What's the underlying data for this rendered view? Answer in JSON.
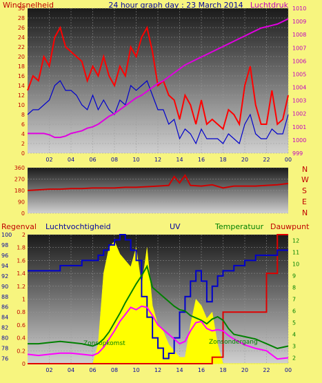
{
  "colors": {
    "page_bg": "#f7f57f",
    "wind": "#e00000",
    "gust": "#ff0000",
    "avg_wind": "#0000cc",
    "pressure": "#e000e0",
    "direction": "#d00000",
    "rain": "#e00000",
    "humidity": "#0000cc",
    "uv": "#ffff00",
    "uv_dark": "#111111",
    "temperature": "#008000",
    "dewpoint": "#ff00ff",
    "text_blue": "#0000a0",
    "text_red": "#c00000",
    "text_green": "#008000",
    "text_magenta": "#c000c0"
  },
  "header": {
    "windsnelheid_label": "Windsnelheid",
    "title": "24 hour graph day : 23 March 2014",
    "luchtdruk_label": "Luchtdruk"
  },
  "compass": {
    "n": "N",
    "w": "W",
    "s1": "S",
    "e": "E",
    "n2": "N"
  },
  "lower_labels": {
    "regenval": "Regenval",
    "luchtvochtigheid": "Luchtvochtigheid",
    "uv": "UV",
    "temperatuur": "Temperatuur",
    "dauwpunt": "Dauwpunt",
    "zonsopkomst": "Zonsopkomst",
    "zonsondergang": "Zonsondergang"
  },
  "chart_data": [
    {
      "type": "line",
      "title": "24 hour graph day : 23 March 2014",
      "x_ticks": [
        "02",
        "04",
        "06",
        "08",
        "10",
        "12",
        "14",
        "16",
        "18",
        "20",
        "22",
        "00"
      ],
      "ylabel_left": "Windsnelheid",
      "ylim_left": [
        0,
        30
      ],
      "y_ticks_left": [
        "0",
        "2",
        "4",
        "6",
        "8",
        "10",
        "12",
        "14",
        "16",
        "18",
        "20",
        "22",
        "24",
        "26",
        "28",
        "30"
      ],
      "ylabel_right": "Luchtdruk",
      "ylim_right": [
        999,
        1010
      ],
      "y_ticks_right": [
        "999",
        "1000",
        "1001",
        "1002",
        "1003",
        "1004",
        "1005",
        "1006",
        "1007",
        "1008",
        "1009",
        "1010"
      ],
      "x_hours": [
        0,
        0.5,
        1,
        1.5,
        2,
        2.5,
        3,
        3.5,
        4,
        4.5,
        5,
        5.5,
        6,
        6.5,
        7,
        7.5,
        8,
        8.5,
        9,
        9.5,
        10,
        10.5,
        11,
        11.5,
        12,
        12.5,
        13,
        13.5,
        14,
        14.5,
        15,
        15.5,
        16,
        16.5,
        17,
        17.5,
        18,
        18.5,
        19,
        19.5,
        20,
        20.5,
        21,
        21.5,
        22,
        22.5,
        23,
        23.5,
        24
      ],
      "series": [
        {
          "name": "gust",
          "values": [
            13,
            16,
            15,
            20,
            18,
            24,
            26,
            22,
            21,
            20,
            19,
            15,
            18,
            16,
            20,
            16,
            14,
            18,
            16,
            22,
            20,
            24,
            26,
            21,
            14,
            15,
            12,
            11,
            7,
            12,
            10,
            6,
            11,
            6,
            7,
            6,
            5,
            9,
            8,
            6,
            14,
            18,
            10,
            6,
            6,
            13,
            6,
            7,
            12
          ]
        },
        {
          "name": "average",
          "values": [
            8,
            9,
            9,
            10,
            11,
            14,
            15,
            13,
            13,
            12,
            10,
            9,
            12,
            9,
            11,
            9,
            8,
            11,
            10,
            14,
            13,
            14,
            15,
            12,
            9,
            9,
            6,
            7,
            3,
            5,
            4,
            2,
            5,
            3,
            3,
            3,
            2,
            4,
            3,
            2,
            6,
            8,
            4,
            3,
            3,
            5,
            4,
            4,
            8
          ]
        },
        {
          "name": "pressure",
          "values": [
            1000.5,
            1000.5,
            1000.5,
            1000.5,
            1000.4,
            1000.2,
            1000.2,
            1000.3,
            1000.5,
            1000.6,
            1000.7,
            1000.9,
            1001.0,
            1001.2,
            1001.5,
            1001.8,
            1002.0,
            1002.3,
            1002.6,
            1002.9,
            1003.2,
            1003.4,
            1003.7,
            1004.0,
            1004.3,
            1004.5,
            1004.8,
            1005.1,
            1005.4,
            1005.7,
            1005.9,
            1006.1,
            1006.3,
            1006.5,
            1006.7,
            1006.9,
            1007.1,
            1007.3,
            1007.5,
            1007.7,
            1007.9,
            1008.1,
            1008.3,
            1008.5,
            1008.6,
            1008.7,
            1008.8,
            1009.0,
            1009.2
          ]
        }
      ],
      "grid": true
    },
    {
      "type": "line",
      "title": "",
      "ylim": [
        0,
        360
      ],
      "y_ticks": [
        "0",
        "90",
        "180",
        "270",
        "360"
      ],
      "x_hours": [
        0,
        1,
        2,
        3,
        4,
        5,
        6,
        7,
        8,
        9,
        10,
        11,
        12,
        13,
        13.5,
        14,
        14.5,
        15,
        16,
        17,
        18,
        19,
        20,
        21,
        22,
        23,
        24
      ],
      "series": [
        {
          "name": "direction",
          "values": [
            180,
            185,
            190,
            190,
            195,
            195,
            200,
            200,
            200,
            205,
            205,
            210,
            215,
            220,
            290,
            240,
            300,
            220,
            215,
            225,
            200,
            215,
            215,
            215,
            220,
            225,
            235
          ]
        }
      ],
      "grid": true
    },
    {
      "type": "area",
      "x_hours": [
        0,
        1,
        2,
        3,
        4,
        5,
        6,
        6.5,
        7,
        7.5,
        8,
        8.5,
        9,
        9.5,
        10,
        10.5,
        11,
        11.5,
        12,
        12.5,
        13,
        13.5,
        14,
        14.5,
        15,
        15.5,
        16,
        16.5,
        17,
        17.5,
        18,
        18.5,
        19,
        20,
        21,
        22,
        23,
        24
      ],
      "ylim_left": [
        0,
        2
      ],
      "y_ticks_left": [
        "0",
        "0.2",
        "0.4",
        "0.6",
        "0.8",
        "1",
        "1.2",
        "1.4",
        "1.6",
        "1.8",
        "2"
      ],
      "ylim_left2": [
        75,
        100
      ],
      "y_ticks_left2": [
        "76",
        "78",
        "80",
        "82",
        "84",
        "86",
        "88",
        "90",
        "92",
        "94",
        "96",
        "98",
        "100"
      ],
      "ylim_right": [
        1.5,
        12.5
      ],
      "y_ticks_right": [
        "2",
        "3",
        "4",
        "5",
        "6",
        "7",
        "8",
        "9",
        "10",
        "11",
        "12"
      ],
      "series": [
        {
          "name": "Regenval",
          "values": [
            0,
            0,
            0,
            0,
            0,
            0,
            0,
            0,
            0,
            0,
            0,
            0,
            0,
            0,
            0,
            0,
            0,
            0,
            0,
            0,
            0,
            0,
            0,
            0,
            0,
            0,
            0,
            0,
            0.1,
            0.1,
            0.8,
            0.8,
            0.8,
            0.8,
            0.8,
            1.4,
            2,
            2
          ]
        },
        {
          "name": "Luchtvochtigheid",
          "values": [
            93,
            93,
            93,
            94,
            94,
            95,
            95,
            96,
            97,
            98,
            99,
            100,
            99,
            97,
            95,
            88,
            84,
            80,
            78,
            76,
            77,
            80,
            85,
            88,
            91,
            93,
            91,
            87,
            90,
            92,
            93,
            93,
            94,
            95,
            96,
            96,
            97,
            97
          ]
        },
        {
          "name": "UV",
          "values": [
            0,
            0,
            0,
            0,
            0,
            0,
            0,
            0.3,
            1.4,
            1.8,
            1.9,
            1.7,
            1.6,
            1.5,
            1.8,
            1.2,
            1.8,
            0.9,
            0.6,
            0.5,
            0.3,
            0.2,
            0.1,
            0.1,
            0.6,
            1.0,
            0.9,
            0.7,
            0.8,
            0.3,
            0,
            0,
            0,
            0,
            0,
            0,
            0,
            0
          ]
        },
        {
          "name": "Temperatuur",
          "values": [
            3.2,
            3.2,
            3.3,
            3.4,
            3.3,
            3.2,
            3.0,
            3.2,
            3.6,
            4.2,
            5.0,
            5.8,
            6.7,
            7.5,
            8.3,
            9.0,
            9.8,
            8.0,
            7.6,
            7.2,
            6.8,
            6.4,
            6.1,
            6.0,
            5.6,
            5.4,
            5.2,
            4.9,
            5.3,
            5.5,
            5.2,
            4.5,
            4.0,
            3.8,
            3.6,
            3.2,
            2.8,
            3.0
          ]
        },
        {
          "name": "Dauwpunt",
          "values": [
            2.3,
            2.2,
            2.3,
            2.4,
            2.4,
            2.3,
            2.2,
            2.4,
            2.9,
            3.6,
            4.3,
            5.1,
            5.7,
            6.3,
            6.1,
            6.4,
            6.3,
            5.6,
            4.8,
            4.4,
            4.0,
            3.6,
            3.2,
            3.4,
            4.3,
            5.0,
            5.1,
            4.5,
            4.3,
            4.4,
            4.3,
            3.9,
            3.6,
            3.1,
            2.8,
            2.6,
            1.9,
            2.0
          ]
        }
      ]
    }
  ]
}
